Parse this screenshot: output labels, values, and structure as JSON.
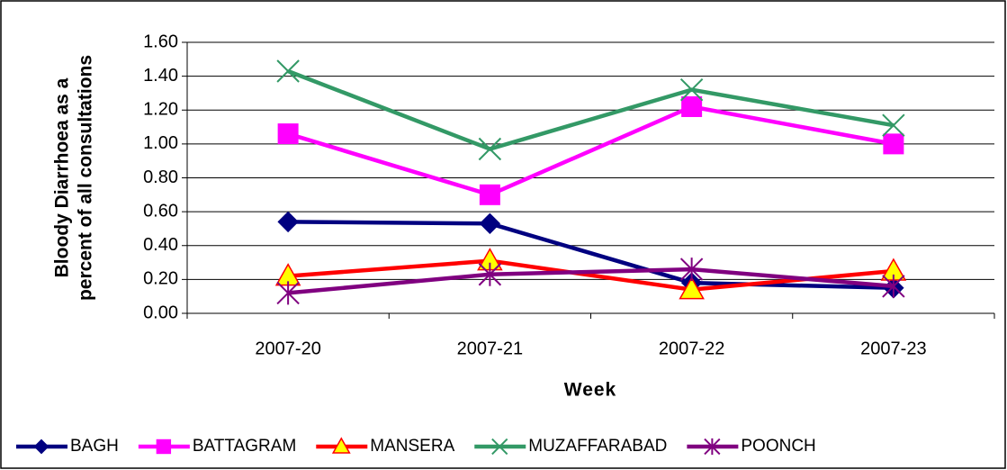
{
  "chart_data": {
    "type": "line",
    "ylabel": [
      "Bloody Diarrhoea as a",
      "percent of all consultations"
    ],
    "xlabel": "Week",
    "categories": [
      "2007-20",
      "2007-21",
      "2007-22",
      "2007-23"
    ],
    "series": [
      {
        "name": "BAGH",
        "color": "#000080",
        "marker": "diamond",
        "values": [
          0.54,
          0.53,
          0.18,
          0.15
        ]
      },
      {
        "name": "BATTAGRAM",
        "color": "#ff00ff",
        "marker": "square",
        "values": [
          1.06,
          0.7,
          1.22,
          1.0
        ]
      },
      {
        "name": "MANSERA",
        "color": "#ff0000",
        "marker": "triangle",
        "values": [
          0.22,
          0.31,
          0.14,
          0.25
        ]
      },
      {
        "name": "MUZAFFARABAD",
        "color": "#339966",
        "marker": "x",
        "values": [
          1.43,
          0.97,
          1.32,
          1.11
        ]
      },
      {
        "name": "POONCH",
        "color": "#800080",
        "marker": "star",
        "values": [
          0.12,
          0.23,
          0.26,
          0.16
        ]
      }
    ],
    "ylim": [
      0,
      1.6
    ],
    "yticks": [
      {
        "value": 0,
        "label": "0.00"
      },
      {
        "value": 0.2,
        "label": "0.20"
      },
      {
        "value": 0.4,
        "label": "0.40"
      },
      {
        "value": 0.6,
        "label": "0.60"
      },
      {
        "value": 0.8,
        "label": "0.80"
      },
      {
        "value": 1.0,
        "label": "1.00"
      },
      {
        "value": 1.2,
        "label": "1.20"
      },
      {
        "value": 1.4,
        "label": "1.40"
      },
      {
        "value": 1.6,
        "label": "1.60"
      }
    ],
    "grid": true,
    "legend": "bottom"
  }
}
